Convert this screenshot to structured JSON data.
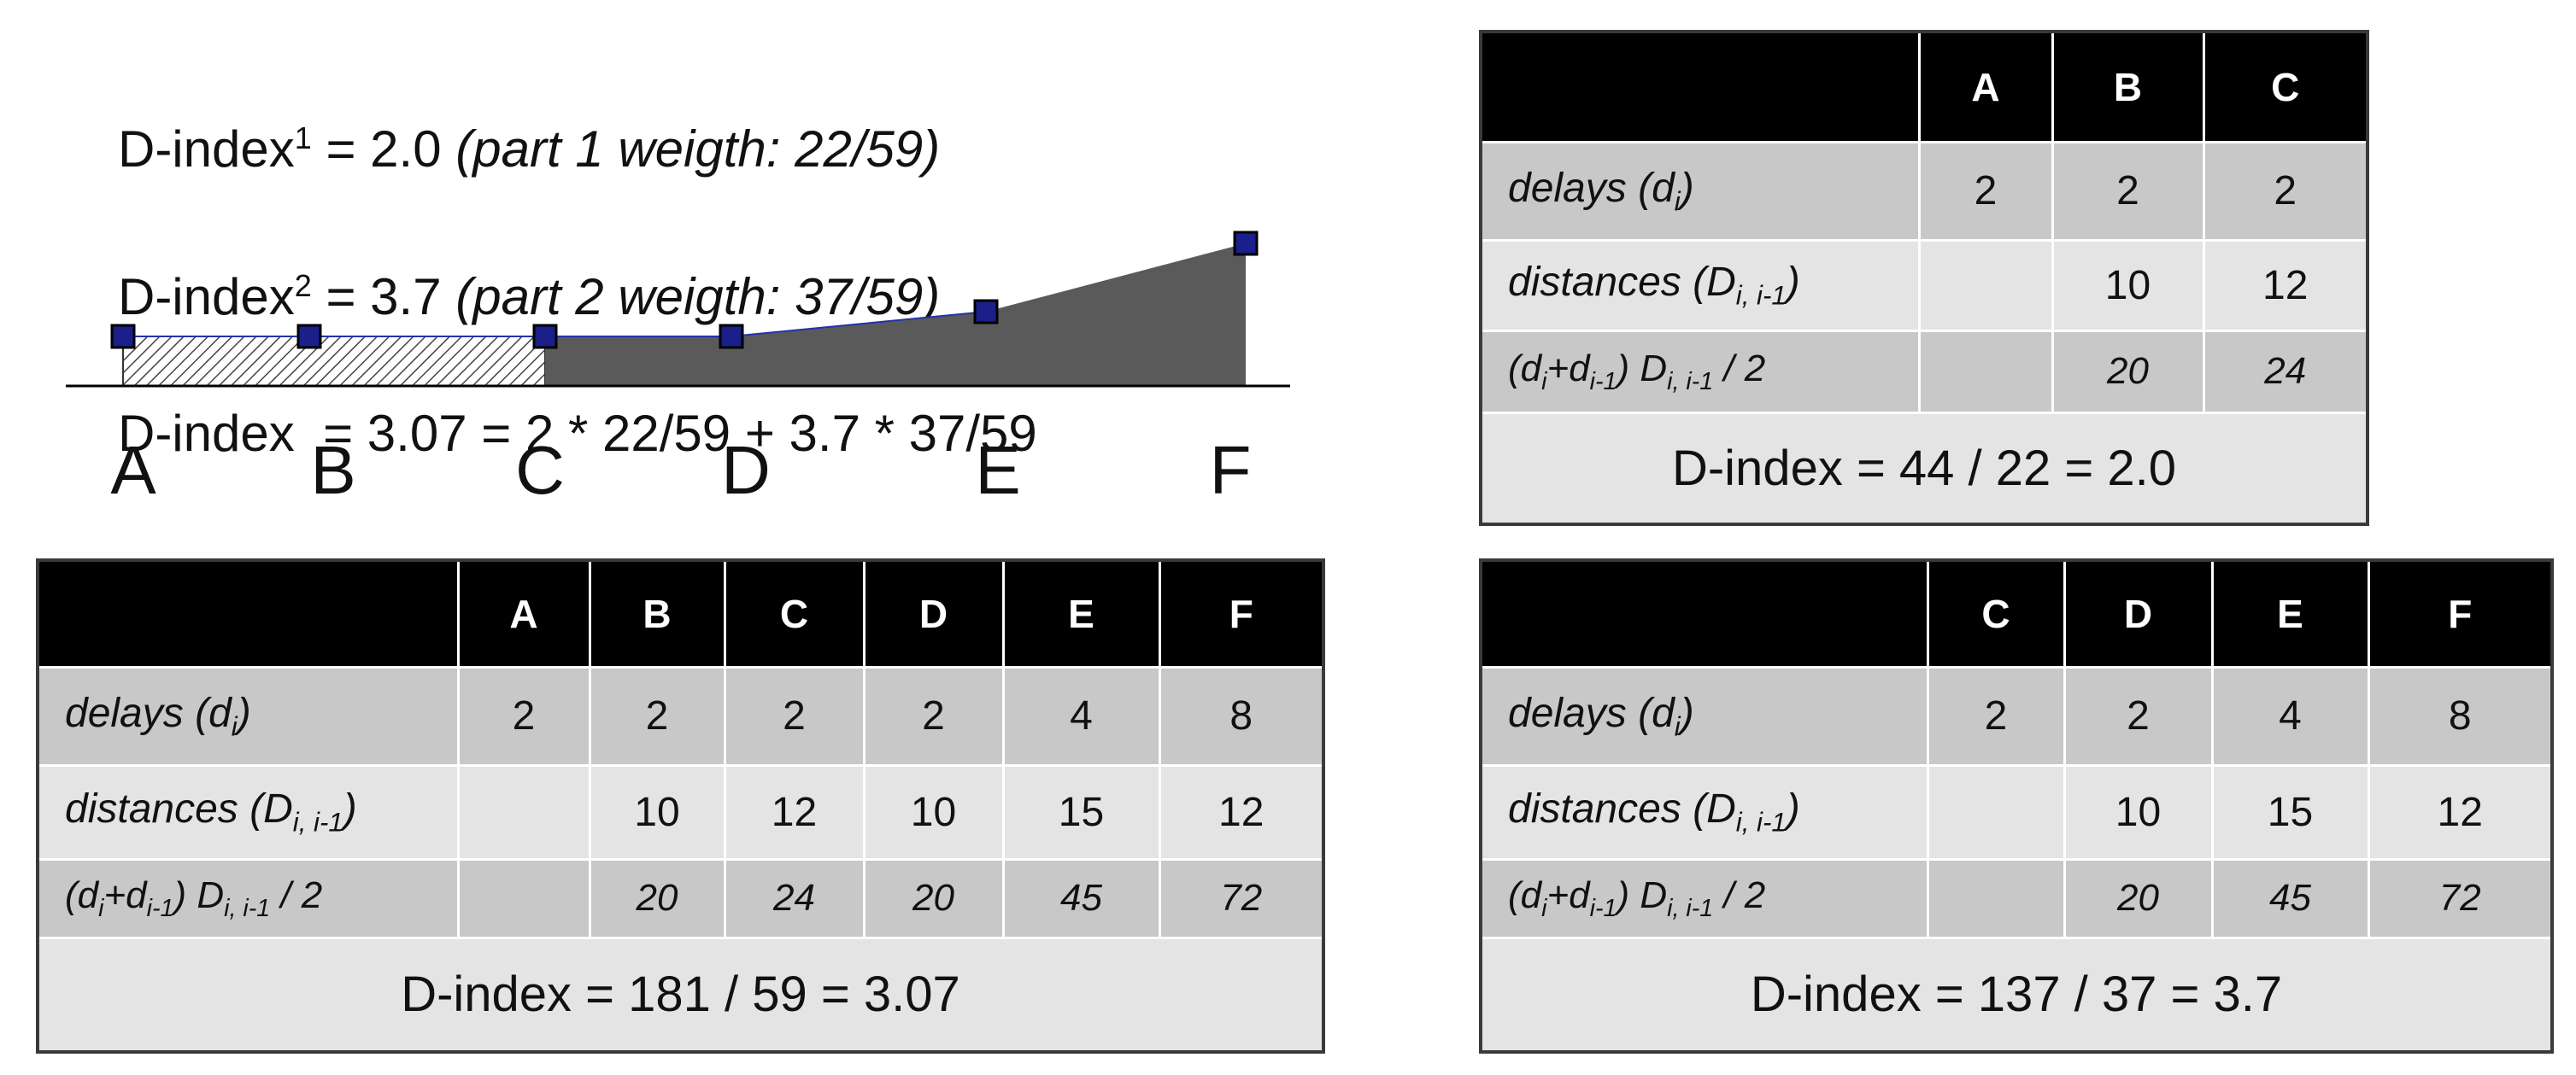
{
  "formulas": [
    {
      "name": "D-index",
      "sup": "1",
      "value": " = 2.0 ",
      "note": "(part 1 weigth: 22/59)"
    },
    {
      "name": "D-index",
      "sup": "2",
      "value": " = 3.7 ",
      "note": "(part 2 weigth: 37/59)"
    },
    {
      "name": "D-index",
      "value": "  = 3.07 = 2 * 22/59 + 3.7 * 37/59"
    }
  ],
  "diagram": {
    "labels": [
      "A",
      "B",
      "C",
      "D",
      "E",
      "F"
    ]
  },
  "tables": [
    {
      "header": [
        "A",
        "B",
        "C"
      ],
      "rows": [
        {
          "label_parts": [
            "delays  (d",
            "i",
            ")"
          ],
          "values": [
            2,
            2,
            2
          ]
        },
        {
          "label_parts": [
            "distances (D",
            "i, i-1",
            ")"
          ],
          "values": [
            null,
            10,
            12
          ]
        },
        {
          "label_parts": [
            "(d",
            "i",
            "+d",
            "i-1",
            ") D",
            "i, i-1",
            " / 2"
          ],
          "values": [
            null,
            20,
            24
          ]
        }
      ],
      "footer": "D-index = 44 / 22 = 2.0"
    },
    {
      "header": [
        "A",
        "B",
        "C",
        "D",
        "E",
        "F"
      ],
      "rows": [
        {
          "label_parts": [
            "delays  (d",
            "i",
            ")"
          ],
          "values": [
            2,
            2,
            2,
            2,
            4,
            8
          ]
        },
        {
          "label_parts": [
            "distances (D",
            "i, i-1",
            ")"
          ],
          "values": [
            null,
            10,
            12,
            10,
            15,
            12
          ]
        },
        {
          "label_parts": [
            "(d",
            "i",
            "+d",
            "i-1",
            ") D",
            "i, i-1",
            " / 2"
          ],
          "values": [
            null,
            20,
            24,
            20,
            45,
            72
          ]
        }
      ],
      "footer": "D-index = 181 / 59 = 3.07"
    },
    {
      "header": [
        "C",
        "D",
        "E",
        "F"
      ],
      "rows": [
        {
          "label_parts": [
            "delays  (d",
            "i",
            ")"
          ],
          "values": [
            2,
            2,
            4,
            8
          ]
        },
        {
          "label_parts": [
            "distances (D",
            "i, i-1",
            ")"
          ],
          "values": [
            null,
            10,
            15,
            12
          ]
        },
        {
          "label_parts": [
            "(d",
            "i",
            "+d",
            "i-1",
            ") D",
            "i, i-1",
            " / 2"
          ],
          "values": [
            null,
            20,
            45,
            72
          ]
        }
      ],
      "footer": "D-index = 137 / 37 = 3.7"
    }
  ]
}
